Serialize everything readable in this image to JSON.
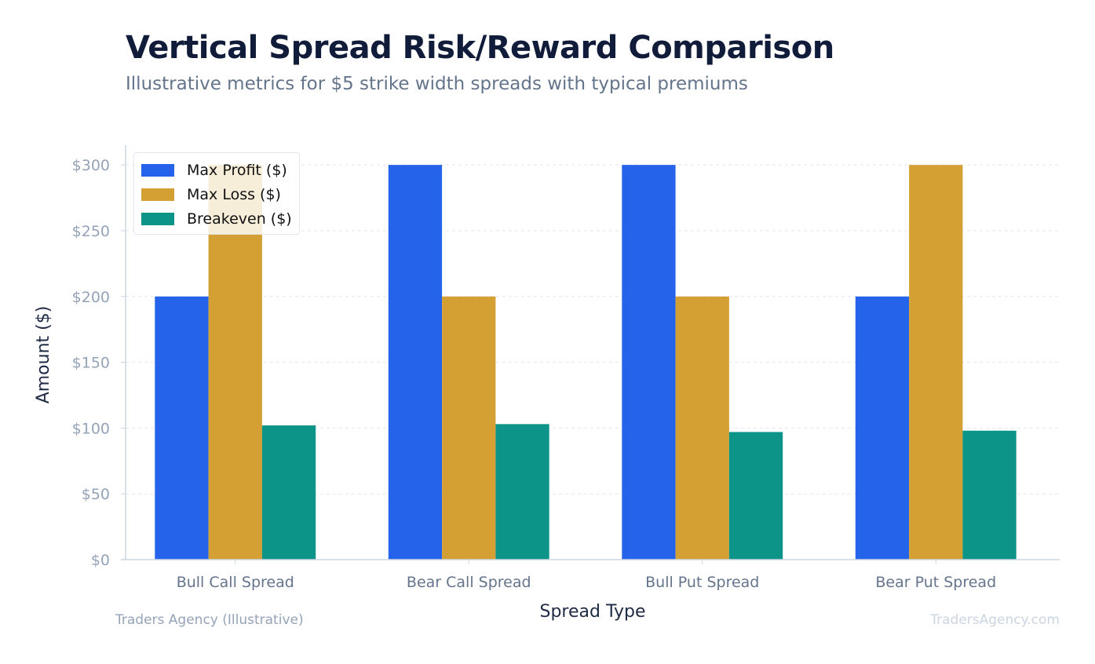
{
  "header": {
    "title": "Vertical Spread Risk/Reward Comparison",
    "subtitle": "Illustrative metrics for $5 strike width spreads with typical premiums"
  },
  "footer": {
    "left": "Traders Agency (Illustrative)",
    "right": "TradersAgency.com"
  },
  "chart_data": {
    "type": "bar",
    "title": "Vertical Spread Risk/Reward Comparison",
    "subtitle": "Illustrative metrics for $5 strike width spreads with typical premiums",
    "xlabel": "Spread Type",
    "ylabel": "Amount ($)",
    "categories": [
      "Bull Call Spread",
      "Bear Call Spread",
      "Bull Put Spread",
      "Bear Put Spread"
    ],
    "series": [
      {
        "name": "Max Profit ($)",
        "color": "#2563eb",
        "values": [
          200,
          300,
          300,
          200
        ]
      },
      {
        "name": "Max Loss ($)",
        "color": "#d4a033",
        "values": [
          300,
          200,
          200,
          300
        ]
      },
      {
        "name": "Breakeven ($)",
        "color": "#0d9488",
        "values": [
          102,
          103,
          97,
          98
        ]
      }
    ],
    "ylim": [
      0,
      315
    ],
    "yticks": [
      0,
      50,
      100,
      150,
      200,
      250,
      300
    ],
    "ytick_labels": [
      "$0",
      "$50",
      "$100",
      "$150",
      "$200",
      "$250",
      "$300"
    ],
    "grid": "horizontal dashed",
    "legend_position": "top-left"
  }
}
